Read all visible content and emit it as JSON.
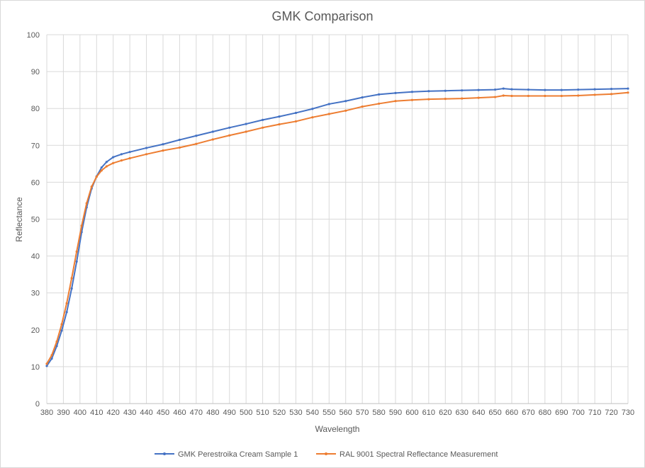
{
  "chart_data": {
    "type": "line",
    "title": "GMK Comparison",
    "xlabel": "Wavelength",
    "ylabel": "Reflectance",
    "xlim": [
      380,
      730
    ],
    "ylim": [
      0,
      100
    ],
    "x_ticks": [
      380,
      390,
      400,
      410,
      420,
      430,
      440,
      450,
      460,
      470,
      480,
      490,
      500,
      510,
      520,
      530,
      540,
      550,
      560,
      570,
      580,
      590,
      600,
      610,
      620,
      630,
      640,
      650,
      660,
      670,
      680,
      690,
      700,
      710,
      720,
      730
    ],
    "y_ticks": [
      0,
      10,
      20,
      30,
      40,
      50,
      60,
      70,
      80,
      90,
      100
    ],
    "x_tick_labels": [
      "380",
      "390",
      "400",
      "410",
      "420",
      "430",
      "440",
      "450",
      "460",
      "470",
      "480",
      "490",
      "500",
      "510",
      "520",
      "530",
      "540",
      "550",
      "560",
      "570",
      "580",
      "590",
      "600",
      "610",
      "620",
      "630",
      "640",
      "650",
      "660",
      "670",
      "680",
      "690",
      "700",
      "710",
      "720",
      "730"
    ],
    "y_tick_labels": [
      "0",
      "10",
      "20",
      "30",
      "40",
      "50",
      "60",
      "70",
      "80",
      "90",
      "100"
    ],
    "grid": true,
    "legend_position": "bottom",
    "series": [
      {
        "name": "GMK Perestroika Cream Sample 1",
        "color": "#4472C4",
        "x": [
          380,
          383,
          386,
          389,
          392,
          395,
          398,
          401,
          404,
          407,
          410,
          413,
          416,
          420,
          425,
          430,
          440,
          450,
          460,
          470,
          480,
          490,
          500,
          510,
          520,
          530,
          540,
          550,
          560,
          570,
          580,
          590,
          600,
          610,
          620,
          630,
          640,
          650,
          655,
          660,
          670,
          680,
          690,
          700,
          710,
          720,
          730
        ],
        "values": [
          10.2,
          12.2,
          15.6,
          19.8,
          24.8,
          31.2,
          38.5,
          46.5,
          53.2,
          58.3,
          61.6,
          64.0,
          65.5,
          66.8,
          67.6,
          68.2,
          69.3,
          70.3,
          71.5,
          72.6,
          73.7,
          74.8,
          75.8,
          76.9,
          77.8,
          78.8,
          79.9,
          81.2,
          82.0,
          83.0,
          83.8,
          84.2,
          84.5,
          84.7,
          84.8,
          84.9,
          85.0,
          85.1,
          85.4,
          85.2,
          85.1,
          85.0,
          85.0,
          85.1,
          85.2,
          85.3,
          85.4
        ]
      },
      {
        "name": "RAL 9001 Spectral Reflectance Measurement",
        "color": "#ED7D31",
        "x": [
          380,
          383,
          386,
          389,
          392,
          395,
          398,
          401,
          404,
          407,
          410,
          413,
          416,
          420,
          425,
          430,
          440,
          450,
          460,
          470,
          480,
          490,
          500,
          510,
          520,
          530,
          540,
          550,
          560,
          570,
          580,
          590,
          600,
          610,
          620,
          630,
          640,
          650,
          655,
          660,
          670,
          680,
          690,
          700,
          710,
          720,
          730
        ],
        "values": [
          10.8,
          13.1,
          16.8,
          21.5,
          27.2,
          34.0,
          41.2,
          48.2,
          54.3,
          58.8,
          61.5,
          63.2,
          64.3,
          65.2,
          65.9,
          66.5,
          67.6,
          68.6,
          69.4,
          70.4,
          71.6,
          72.7,
          73.7,
          74.8,
          75.7,
          76.5,
          77.6,
          78.5,
          79.4,
          80.5,
          81.3,
          82.0,
          82.3,
          82.5,
          82.6,
          82.7,
          82.9,
          83.1,
          83.5,
          83.4,
          83.4,
          83.4,
          83.4,
          83.5,
          83.7,
          83.9,
          84.3
        ]
      }
    ]
  }
}
